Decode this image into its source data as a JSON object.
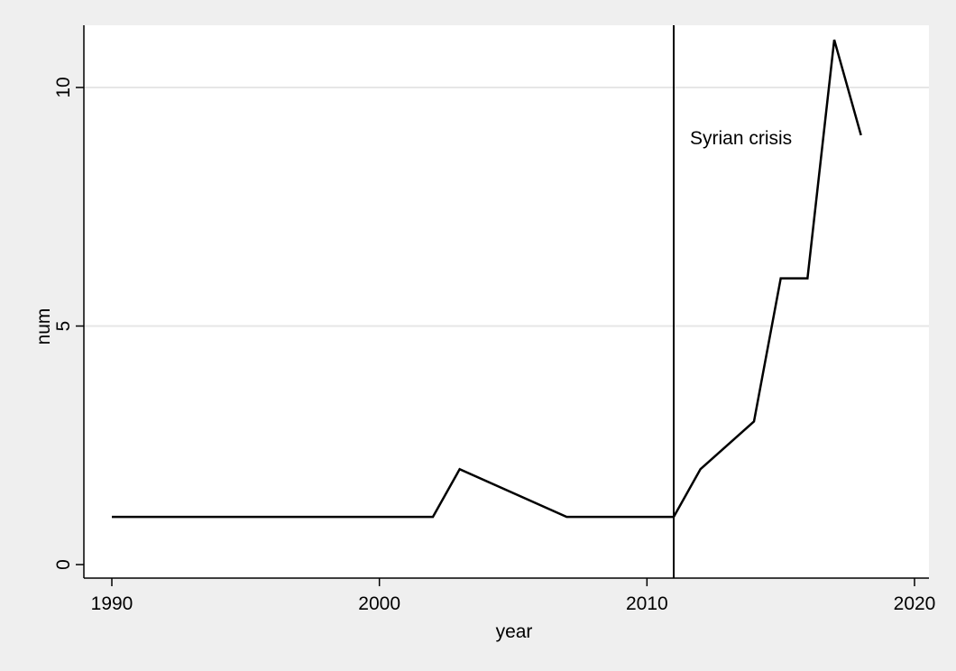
{
  "chart_data": {
    "type": "line",
    "title": "",
    "xlabel": "year",
    "ylabel": "num",
    "xlim": [
      1990,
      2020
    ],
    "ylim": [
      0,
      11
    ],
    "x_ticks": [
      1990,
      2000,
      2010,
      2020
    ],
    "y_ticks": [
      0,
      5,
      10
    ],
    "grid": "horizontal",
    "legend": "none",
    "series": [
      {
        "x": [
          1990,
          2002,
          2003,
          2007,
          2011,
          2012,
          2014,
          2015,
          2016,
          2017,
          2018
        ],
        "values": [
          1,
          1,
          2,
          1,
          1,
          2,
          3,
          6,
          6,
          11,
          9
        ]
      }
    ],
    "reference_line": {
      "x": 2011,
      "label": "Syrian crisis"
    },
    "colors": {
      "plot_bg": "#ffffff",
      "page_bg": "#efefef",
      "line": "#000000",
      "grid": "#e6e6e6"
    }
  }
}
